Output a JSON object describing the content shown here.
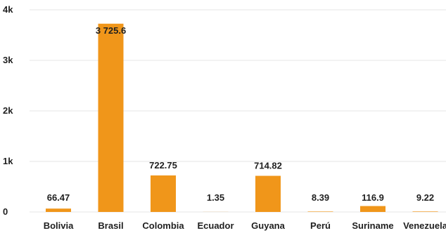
{
  "chart_data": {
    "type": "bar",
    "title": "",
    "xlabel": "",
    "ylabel": "",
    "categories": [
      "Bolivia",
      "Brasil",
      "Colombia",
      "Ecuador",
      "Guyana",
      "Perú",
      "Suriname",
      "Venezuela"
    ],
    "values": [
      66.47,
      3725.6,
      722.75,
      1.35,
      714.82,
      8.39,
      116.9,
      9.22
    ],
    "value_labels": [
      "66.47",
      "3 725.6",
      "722.75",
      "1.35",
      "714.82",
      "8.39",
      "116.9",
      "9.22"
    ],
    "ylim": [
      0,
      4000
    ],
    "y_ticks": [
      0,
      1000,
      2000,
      3000,
      4000
    ],
    "y_tick_labels": [
      "0",
      "1k",
      "2k",
      "3k",
      "4k"
    ],
    "grid": true,
    "legend": "none",
    "bar_color": "#F0961A",
    "grid_color": "#E6E6E6",
    "text_color": "#1F1F1F"
  }
}
